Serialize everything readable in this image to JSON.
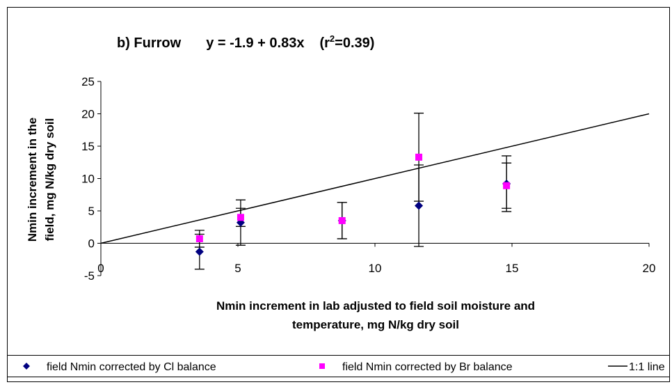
{
  "chart_data": {
    "type": "scatter",
    "title_parts": [
      "b) Furrow",
      "y = -1.9 + 0.83x",
      "(r",
      "2",
      "=0.39)"
    ],
    "x_label": [
      "Nmin increment in lab adjusted to field soil moisture and",
      "temperature, mg N/kg dry soil"
    ],
    "y_label": [
      "Nmin increment in the",
      "field, mg N/kg dry soil"
    ],
    "xlim": [
      0,
      20
    ],
    "ylim": [
      -5,
      25
    ],
    "xticks": [
      0,
      5,
      10,
      15,
      20
    ],
    "yticks": [
      -5,
      0,
      5,
      10,
      15,
      20,
      25
    ],
    "grid": false,
    "series": [
      {
        "name": "field Nmin corrected by Cl balance",
        "color": "#000080",
        "marker": "diamond",
        "x": [
          3.6,
          5.1,
          8.8,
          11.6,
          14.8
        ],
        "values": [
          -1.3,
          3.2,
          3.5,
          5.8,
          9.2
        ],
        "errors": [
          2.7,
          3.5,
          2.8,
          6.3,
          4.3
        ]
      },
      {
        "name": "field Nmin corrected by Br balance",
        "color": "#ff00ff",
        "marker": "square",
        "x": [
          3.6,
          5.1,
          8.8,
          11.6,
          14.8
        ],
        "values": [
          0.7,
          4.0,
          3.5,
          13.3,
          8.9
        ],
        "errors": [
          1.3,
          1.4,
          2.8,
          6.8,
          3.5
        ]
      },
      {
        "name": "1:1 line",
        "color": "#000000",
        "marker": "line",
        "x": [
          0,
          20
        ],
        "values": [
          0,
          20
        ]
      }
    ]
  }
}
